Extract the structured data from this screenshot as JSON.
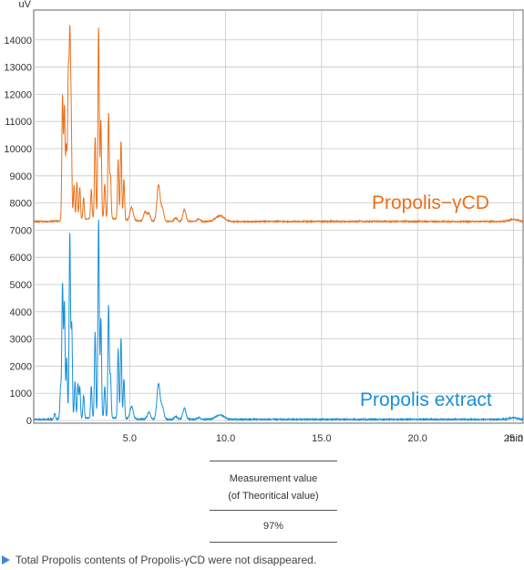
{
  "chart_data": {
    "type": "line",
    "ylabel": "uV",
    "xlabel": "min",
    "xlim": [
      0,
      25.5
    ],
    "ylim": [
      -100,
      15100
    ],
    "x_ticks": [
      "5.0",
      "10.0",
      "15.0",
      "20.0",
      "25.0"
    ],
    "x_tick_values": [
      5,
      10,
      15,
      20,
      25
    ],
    "y_ticks": [
      "0",
      "1000",
      "2000",
      "3000",
      "4000",
      "5000",
      "6000",
      "7000",
      "8000",
      "9000",
      "10000",
      "11000",
      "12000",
      "13000",
      "14000"
    ],
    "y_tick_values": [
      0,
      1000,
      2000,
      3000,
      4000,
      5000,
      6000,
      7000,
      8000,
      9000,
      10000,
      11000,
      12000,
      13000,
      14000
    ],
    "series": [
      {
        "name": "Propolis-γCD",
        "color": "#e8711c",
        "baseline": 7320,
        "peaks": [
          {
            "x": 1.5,
            "y": 11900
          },
          {
            "x": 1.6,
            "y": 11500
          },
          {
            "x": 1.7,
            "y": 10000
          },
          {
            "x": 1.8,
            "y": 12500
          },
          {
            "x": 1.88,
            "y": 13650
          },
          {
            "x": 1.95,
            "y": 11000
          },
          {
            "x": 2.1,
            "y": 8600
          },
          {
            "x": 2.25,
            "y": 8700
          },
          {
            "x": 2.4,
            "y": 8500
          },
          {
            "x": 2.6,
            "y": 8100
          },
          {
            "x": 3.0,
            "y": 8400
          },
          {
            "x": 3.2,
            "y": 10300
          },
          {
            "x": 3.38,
            "y": 14350
          },
          {
            "x": 3.5,
            "y": 10900
          },
          {
            "x": 3.7,
            "y": 8600
          },
          {
            "x": 3.9,
            "y": 11200
          },
          {
            "x": 4.0,
            "y": 8900
          },
          {
            "x": 4.4,
            "y": 9500
          },
          {
            "x": 4.55,
            "y": 10200
          },
          {
            "x": 4.7,
            "y": 8800
          },
          {
            "x": 5.1,
            "y": 7800
          },
          {
            "x": 5.8,
            "y": 7650
          },
          {
            "x": 6.0,
            "y": 7600
          },
          {
            "x": 6.5,
            "y": 8650
          },
          {
            "x": 6.7,
            "y": 7800
          },
          {
            "x": 7.4,
            "y": 7450
          },
          {
            "x": 7.85,
            "y": 7750
          },
          {
            "x": 8.6,
            "y": 7420
          },
          {
            "x": 9.7,
            "y": 7530
          },
          {
            "x": 25.0,
            "y": 7400
          }
        ]
      },
      {
        "name": "Propolis extract",
        "color": "#1a8fd6",
        "baseline": 40,
        "peaks": [
          {
            "x": 1.1,
            "y": 250
          },
          {
            "x": 1.4,
            "y": 1200
          },
          {
            "x": 1.5,
            "y": 5000
          },
          {
            "x": 1.6,
            "y": 4300
          },
          {
            "x": 1.72,
            "y": 2300
          },
          {
            "x": 1.88,
            "y": 6800
          },
          {
            "x": 1.98,
            "y": 3500
          },
          {
            "x": 2.15,
            "y": 1400
          },
          {
            "x": 2.3,
            "y": 1300
          },
          {
            "x": 2.4,
            "y": 1200
          },
          {
            "x": 2.6,
            "y": 900
          },
          {
            "x": 3.0,
            "y": 1200
          },
          {
            "x": 3.2,
            "y": 3200
          },
          {
            "x": 3.38,
            "y": 7300
          },
          {
            "x": 3.5,
            "y": 3700
          },
          {
            "x": 3.7,
            "y": 1200
          },
          {
            "x": 3.9,
            "y": 4200
          },
          {
            "x": 4.0,
            "y": 1600
          },
          {
            "x": 4.4,
            "y": 2600
          },
          {
            "x": 4.55,
            "y": 3000
          },
          {
            "x": 4.7,
            "y": 1500
          },
          {
            "x": 5.1,
            "y": 500
          },
          {
            "x": 6.0,
            "y": 300
          },
          {
            "x": 6.5,
            "y": 1350
          },
          {
            "x": 6.7,
            "y": 500
          },
          {
            "x": 7.4,
            "y": 150
          },
          {
            "x": 7.85,
            "y": 450
          },
          {
            "x": 8.6,
            "y": 110
          },
          {
            "x": 9.7,
            "y": 200
          },
          {
            "x": 25.0,
            "y": 100
          }
        ]
      }
    ],
    "annotations": [
      "Propolis−γCD",
      "Propolis extract"
    ]
  },
  "measurement": {
    "header_line1": "Measurement value",
    "header_line2": "(of Theoritical value)",
    "value": "97%"
  },
  "footnote": "Total Propolis contents of Propolis-γCD were not disappeared."
}
